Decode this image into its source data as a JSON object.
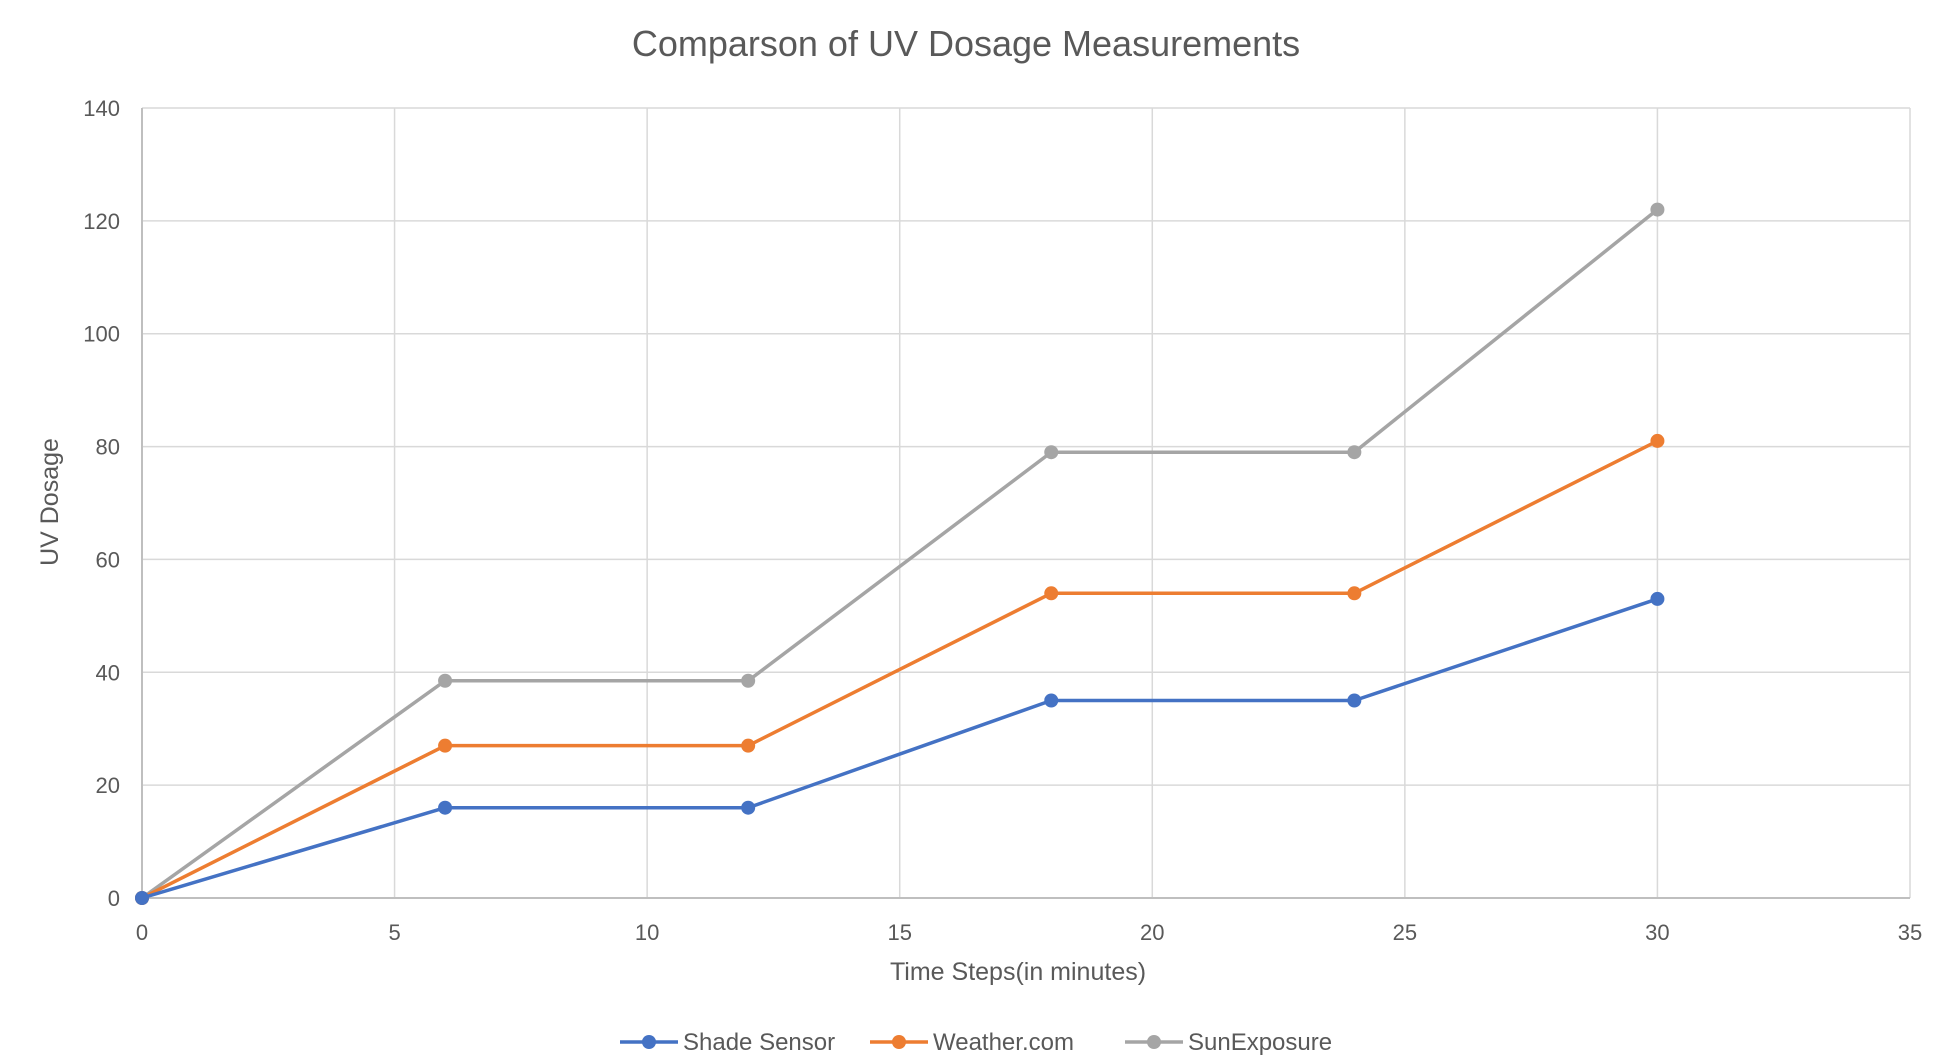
{
  "chart_data": {
    "type": "line",
    "title": "Comparson of UV Dosage Measurements",
    "xlabel": "Time Steps(in minutes)",
    "ylabel": "UV Dosage",
    "xlim": [
      0,
      35
    ],
    "ylim": [
      0,
      140
    ],
    "x_ticks": [
      0,
      5,
      10,
      15,
      20,
      25,
      30,
      35
    ],
    "y_ticks": [
      0,
      20,
      40,
      60,
      80,
      100,
      120,
      140
    ],
    "grid": true,
    "legend_position": "bottom",
    "x": [
      0,
      6,
      12,
      18,
      24,
      30
    ],
    "series": [
      {
        "name": "Shade Sensor",
        "color": "#4472C4",
        "values": [
          0,
          16,
          16,
          35,
          35,
          53
        ]
      },
      {
        "name": "Weather.com",
        "color": "#ED7D31",
        "values": [
          0,
          27,
          27,
          54,
          54,
          81
        ]
      },
      {
        "name": "SunExposure",
        "color": "#A5A5A5",
        "values": [
          0,
          38.5,
          38.5,
          79,
          79,
          122
        ]
      }
    ]
  }
}
